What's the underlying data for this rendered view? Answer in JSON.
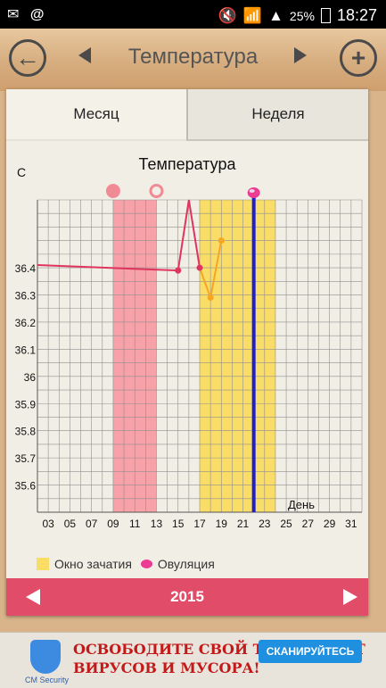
{
  "status_bar": {
    "left_icons": [
      "mail-icon",
      "at-icon"
    ],
    "right_icons": [
      "mute-icon",
      "wifi-icon",
      "signal-icon"
    ],
    "battery": "25%",
    "time": "18:27"
  },
  "header": {
    "title": "Температура",
    "back_icon": "arrow-left-icon",
    "add_icon": "plus-icon"
  },
  "tabs": [
    {
      "label": "Месяц",
      "active": true
    },
    {
      "label": "Неделя",
      "active": false
    }
  ],
  "chart_data": {
    "type": "line",
    "title": "Температура",
    "ylabel": "С",
    "xlabel": "День",
    "ylim": [
      35.5,
      36.65
    ],
    "xlim": [
      2,
      32
    ],
    "x_ticks": [
      "03",
      "05",
      "07",
      "09",
      "11",
      "13",
      "15",
      "17",
      "19",
      "21",
      "23",
      "25",
      "27",
      "29",
      "31"
    ],
    "y_ticks": [
      "36.4",
      "36.3",
      "36.2",
      "36.1",
      "36",
      "35.9",
      "35.8",
      "35.7",
      "35.6"
    ],
    "menstruation_range": [
      9,
      13
    ],
    "fertile_window": [
      17,
      24
    ],
    "ovulation_day": 22,
    "period_markers": [
      {
        "x": 9,
        "type": "filled"
      },
      {
        "x": 13,
        "type": "hollow"
      }
    ],
    "series": [
      {
        "color": "#e0345f",
        "points": [
          [
            2,
            36.41
          ],
          [
            15,
            36.39
          ],
          [
            16,
            36.65
          ],
          [
            17,
            36.4
          ]
        ]
      },
      {
        "color": "#f5a623",
        "points": [
          [
            17,
            36.4
          ],
          [
            18,
            36.29
          ],
          [
            19,
            36.5
          ]
        ]
      }
    ]
  },
  "legend": {
    "fertile_label": "Окно зачатия",
    "ovulation_label": "Овуляция"
  },
  "year_bar": {
    "year": "2015"
  },
  "ad": {
    "brand": "CM Security",
    "text": "ОСВОБОДИТЕ СВОЙ ТЕЛЕФОН ОТ ВИРУСОВ И МУСОРА!",
    "button": "СКАНИРУЙТЕСЬ"
  }
}
